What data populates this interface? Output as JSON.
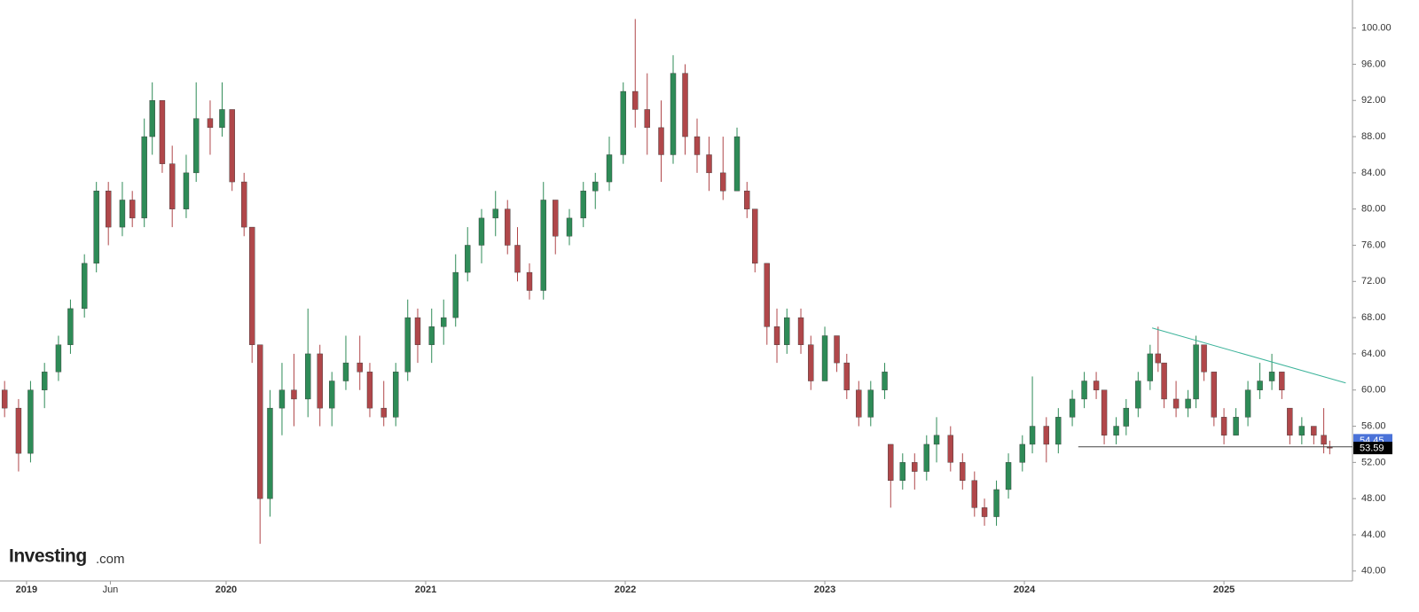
{
  "chart_data": {
    "type": "candlestick",
    "watermark": {
      "brand": "Investing",
      "suffix": ".com"
    },
    "up_color": "#2e8b57",
    "down_color": "#b0474a",
    "xlim": [
      2018.867,
      2025.644
    ],
    "xticks": [
      {
        "value": 2019,
        "label": "2019"
      },
      {
        "value": 2019.42,
        "label": "Jun"
      },
      {
        "value": 2020,
        "label": "2020"
      },
      {
        "value": 2021,
        "label": "2021"
      },
      {
        "value": 2022,
        "label": "2022"
      },
      {
        "value": 2023,
        "label": "2023"
      },
      {
        "value": 2024,
        "label": "2024"
      },
      {
        "value": 2025,
        "label": "2025"
      }
    ],
    "ylim": [
      38.9,
      103.1
    ],
    "yticks": [
      {
        "value": 40,
        "label": "40.00"
      },
      {
        "value": 44,
        "label": "44.00"
      },
      {
        "value": 48,
        "label": "48.00"
      },
      {
        "value": 52,
        "label": "52.00"
      },
      {
        "value": 56,
        "label": "56.00"
      },
      {
        "value": 60,
        "label": "60.00"
      },
      {
        "value": 64,
        "label": "64.00"
      },
      {
        "value": 68,
        "label": "68.00"
      },
      {
        "value": 72,
        "label": "72.00"
      },
      {
        "value": 76,
        "label": "76.00"
      },
      {
        "value": 80,
        "label": "80.00"
      },
      {
        "value": 84,
        "label": "84.00"
      },
      {
        "value": 88,
        "label": "88.00"
      },
      {
        "value": 92,
        "label": "92.00"
      },
      {
        "value": 96,
        "label": "96.00"
      },
      {
        "value": 100,
        "label": "100.00"
      }
    ],
    "x": [
      2018.89,
      2018.96,
      2019.02,
      2019.09,
      2019.16,
      2019.22,
      2019.29,
      2019.35,
      2019.41,
      2019.48,
      2019.53,
      2019.59,
      2019.63,
      2019.68,
      2019.73,
      2019.8,
      2019.85,
      2019.92,
      2019.98,
      2020.03,
      2020.09,
      2020.13,
      2020.17,
      2020.22,
      2020.28,
      2020.34,
      2020.41,
      2020.47,
      2020.53,
      2020.6,
      2020.67,
      2020.72,
      2020.79,
      2020.85,
      2020.91,
      2020.96,
      2021.03,
      2021.09,
      2021.15,
      2021.21,
      2021.28,
      2021.35,
      2021.41,
      2021.46,
      2021.52,
      2021.59,
      2021.65,
      2021.72,
      2021.79,
      2021.85,
      2021.92,
      2021.99,
      2022.05,
      2022.11,
      2022.18,
      2022.24,
      2022.3,
      2022.36,
      2022.42,
      2022.49,
      2022.56,
      2022.61,
      2022.65,
      2022.71,
      2022.76,
      2022.81,
      2022.88,
      2022.93,
      2023.0,
      2023.06,
      2023.11,
      2023.17,
      2023.23,
      2023.3,
      2023.33,
      2023.39,
      2023.45,
      2023.51,
      2023.56,
      2023.63,
      2023.69,
      2023.75,
      2023.8,
      2023.86,
      2023.92,
      2023.99,
      2024.04,
      2024.11,
      2024.17,
      2024.24,
      2024.3,
      2024.36,
      2024.4,
      2024.46,
      2024.51,
      2024.57,
      2024.63,
      2024.67,
      2024.7,
      2024.76,
      2024.82,
      2024.86,
      2024.9,
      2024.95,
      2025.0,
      2025.06,
      2025.12,
      2025.18,
      2025.24,
      2025.29,
      2025.33,
      2025.39,
      2025.45,
      2025.5,
      2025.53
    ],
    "open": [
      60,
      58,
      53,
      60,
      62,
      65,
      69,
      74,
      82,
      78,
      81,
      79,
      88,
      92,
      85,
      80,
      84,
      90,
      89,
      91,
      83,
      78,
      65,
      48,
      58,
      60,
      59,
      64,
      58,
      61,
      63,
      62,
      58,
      57,
      62,
      68,
      65,
      67,
      68,
      73,
      76,
      79,
      80,
      76,
      73,
      71,
      81,
      77,
      79,
      82,
      83,
      86,
      93,
      91,
      89,
      86,
      95,
      88,
      86,
      84,
      82,
      82,
      80,
      74,
      67,
      65,
      68,
      65,
      61,
      66,
      63,
      60,
      57,
      60,
      54,
      50,
      52,
      51,
      54,
      55,
      52,
      50,
      47,
      46,
      49,
      52,
      54,
      56,
      54,
      57,
      59,
      61,
      60,
      55,
      56,
      58,
      61,
      64,
      63,
      59,
      58,
      59,
      65,
      62,
      57,
      55,
      57,
      60,
      61,
      62,
      58,
      55,
      56,
      55,
      53.7
    ],
    "high": [
      61,
      59,
      61,
      63,
      66,
      70,
      75,
      83,
      83,
      83,
      82,
      90,
      94,
      92,
      87,
      86,
      94,
      92,
      94,
      91,
      84,
      78,
      65,
      60,
      63,
      64,
      69,
      65,
      62,
      66,
      66,
      63,
      61,
      63,
      70,
      69,
      69,
      70,
      75,
      78,
      80,
      82,
      81,
      78,
      74,
      83,
      81,
      80,
      83,
      84,
      88,
      94,
      101,
      95,
      92,
      97,
      96,
      90,
      88,
      88,
      89,
      83,
      80,
      74,
      69,
      69,
      69,
      66,
      67,
      66,
      64,
      61,
      61,
      63,
      54,
      53,
      53,
      55,
      57,
      56,
      53,
      51,
      48,
      50,
      53,
      55,
      61.5,
      57,
      58,
      60,
      62,
      62,
      60,
      57,
      59,
      62,
      65,
      67,
      63,
      61,
      60,
      66,
      65,
      62,
      58,
      58,
      61,
      63,
      64,
      62,
      58,
      57,
      56,
      58,
      54.4
    ],
    "low": [
      57,
      51,
      52,
      58,
      61,
      64,
      68,
      73,
      76,
      77,
      78,
      78,
      86,
      84,
      78,
      79,
      83,
      86,
      88,
      82,
      77,
      63,
      43,
      46,
      55,
      56,
      57,
      56,
      56,
      60,
      60,
      57,
      56,
      56,
      61,
      63,
      63,
      65,
      67,
      72,
      74,
      77,
      75,
      72,
      70,
      70,
      75,
      76,
      78,
      80,
      82,
      85,
      89,
      86,
      83,
      85,
      86,
      84,
      82,
      81,
      82,
      79,
      73,
      65,
      63,
      64,
      64,
      60,
      61,
      62,
      59,
      56,
      56,
      59,
      47,
      49,
      49,
      50,
      52,
      51,
      49,
      46,
      45,
      45,
      48,
      51,
      53,
      52,
      53,
      56,
      58,
      59,
      54,
      54,
      55,
      57,
      60,
      62,
      58,
      57,
      57,
      58,
      61,
      56,
      54,
      55,
      56,
      59,
      60,
      59,
      54,
      54,
      54,
      53,
      52.9
    ],
    "close": [
      58,
      53,
      60,
      62,
      65,
      69,
      74,
      82,
      78,
      81,
      79,
      88,
      92,
      85,
      80,
      84,
      90,
      89,
      91,
      83,
      78,
      65,
      48,
      58,
      60,
      59,
      64,
      58,
      61,
      63,
      62,
      58,
      57,
      62,
      68,
      65,
      67,
      68,
      73,
      76,
      79,
      80,
      76,
      73,
      71,
      81,
      77,
      79,
      82,
      83,
      86,
      93,
      91,
      89,
      86,
      95,
      88,
      86,
      84,
      82,
      88,
      80,
      74,
      67,
      65,
      68,
      65,
      61,
      66,
      63,
      60,
      57,
      60,
      62,
      50,
      52,
      51,
      54,
      55,
      52,
      50,
      47,
      46,
      49,
      52,
      54,
      56,
      54,
      57,
      59,
      61,
      60,
      55,
      56,
      58,
      61,
      64,
      63,
      59,
      58,
      59,
      65,
      62,
      57,
      55,
      57,
      60,
      61,
      62,
      60,
      55,
      56,
      55,
      54,
      53.59
    ],
    "trendlines": [
      {
        "x": [
          2024.64,
          2025.61
        ],
        "y": [
          66.86,
          60.78
        ],
        "color": "#3cb39a"
      },
      {
        "x": [
          2024.27,
          2025.644
        ],
        "y": [
          53.73,
          53.73
        ],
        "color": "#444444"
      }
    ],
    "price_markers": [
      {
        "value": 54.45,
        "color": "#4a72d8"
      },
      {
        "value": 53.59,
        "color": "#000000"
      }
    ]
  }
}
